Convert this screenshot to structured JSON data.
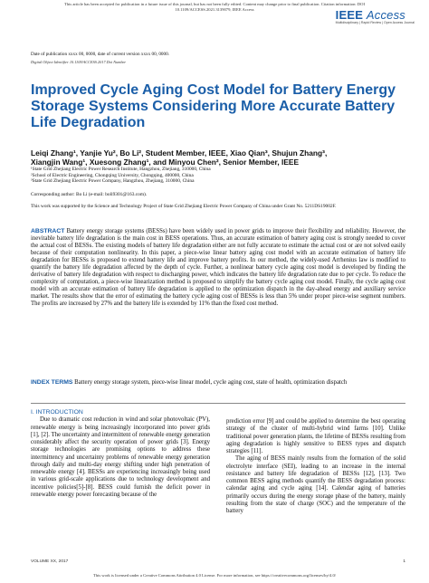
{
  "header": {
    "notice_line1": "This article has been accepted for publication in a future issue of this journal, but has not been fully edited. Content may change prior to final publication. Citation information: DOI",
    "notice_line2": "10.1109/ACCESS.2021.3139079, IEEE Access",
    "logo_ieee": "IEEE",
    "logo_access": "Access",
    "logo_tagline": "Multidisciplinary | Rapid Review | Open Access Journal"
  },
  "meta": {
    "dates": "Date of publication xxxx 00, 0000, date of current version xxxx 00, 0000.",
    "doi": "Digital Object Identifier 10.1109/ACCESS.2017.Doi Number"
  },
  "paper": {
    "title": "Improved Cycle Aging Cost Model for Battery Energy Storage Systems Considering More Accurate Battery Life Degradation",
    "authors_line1": "Leiqi Zhang¹, Yanjie Yu², Bo Li², Student Member, IEEE, Xiao Qian³, Shujun Zhang³,",
    "authors_line2": "Xiangjin Wang¹, Xuesong Zhang¹, and Minyou Chen², Senior Member, IEEE",
    "affiliations": [
      "¹State Grid Zhejiang Electric Power Research Institute, Hangzhou, Zhejiang, 310000, China",
      "²School of Electric Engineering, Chongqing University, Chongqing, 400000, China",
      "³State Grid Zhejiang Electric Power Company, Hangzhou, Zhejiang, 310000, China"
    ],
    "corresponding": "Corresponding author: Bo Li (e-mail: boli9301@163.com).",
    "funding": "This work was supported by the Science and Technology Project of State Grid Zhejiang Electric Power Company of China under Grant No. 5211DS19002F.",
    "abstract_label": "ABSTRACT",
    "abstract_text": "Battery energy storage systems (BESSs) have been widely used in power grids to improve their flexibility and reliability. However, the inevitable battery life degradation is the main cost in BESS operations. Thus, an accurate estimation of battery aging cost is strongly needed to cover the actual cost of BESSs. The existing models of battery life degradation either are not fully accurate to estimate the actual cost or are not solved easily because of their computation nonlinearity. In this paper, a piece-wise linear battery aging cost model with an accurate estimation of battery life degradation for BESSs is proposed to extend battery life and improve battery profits. In our method, the widely-used Arrhenius law is modified to quantify the battery life degradation affected by the depth of cycle. Further, a nonlinear battery cycle aging cost model is developed by finding the derivative of battery life degradation with respect to discharging power, which indicates the battery life degradation rate due to per cycle. To reduce the complexity of computation, a piece-wise linearization method is proposed to simplify the battery cycle aging cost model. Finally, the cycle aging cost model with an accurate estimation of battery life degradation is applied to the optimization dispatch in the day-ahead energy and auxiliary service market. The results show that the error of estimating the battery cycle aging cost of BESSs is less than 5% under proper piece-wise segment numbers. The profits are increased by 27% and the battery life is extended by 11% than the fixed cost method.",
    "index_label": "INDEX TERMS",
    "index_text": "Battery energy storage system, piece-wise linear model, cycle aging cost, state of health, optimization dispatch"
  },
  "body": {
    "section_heading": "I. INTRODUCTION",
    "left_col": "Due to dramatic cost reduction in wind and solar photovoltaic (PV), renewable energy is being increasingly incorporated into power grids [1], [2]. The uncertainty and intermittent of renewable energy generation considerably affect the security operation of power grids [3]. Energy storage technologies are promising options to address these intermittency and uncertainty problems of renewable energy generation through daily and multi-day energy shifting under high penetration of renewable energy [4]. BESSs are experiencing increasingly being used in various grid-scale applications due to technology development and incentive policies[5]-[8]. BESS could furnish the deficit power in renewable energy power forecasting because of the",
    "right_col_p1": "prediction error [9] and could be applied to determine the best operating strategy of the cluster of multi-hybrid wind farms [10]. Unlike traditional power generation plants, the lifetime of BESSs resulting from aging degradation is highly sensitive to BESS types and dispatch strategies [11].",
    "right_col_p2": "The aging of BESS mainly results from the formation of the solid electrolyte interface (SEI), leading to an increase in the internal resistance and battery life degradation of BESSs [12], [13]. Two common BESS aging methods quantify the BESS degradation process: calendar aging and cycle aging [14]. Calendar aging of batteries primarily occurs during the energy storage phase of the battery, mainly resulting from the state of charge (SOC) and the temperature of the battery"
  },
  "footer": {
    "volume": "VOLUME XX, 2017",
    "page": "1",
    "license": "This work is licensed under a Creative Commons Attribution 4.0 License. For more information, see https://creativecommons.org/licenses/by/4.0/"
  }
}
